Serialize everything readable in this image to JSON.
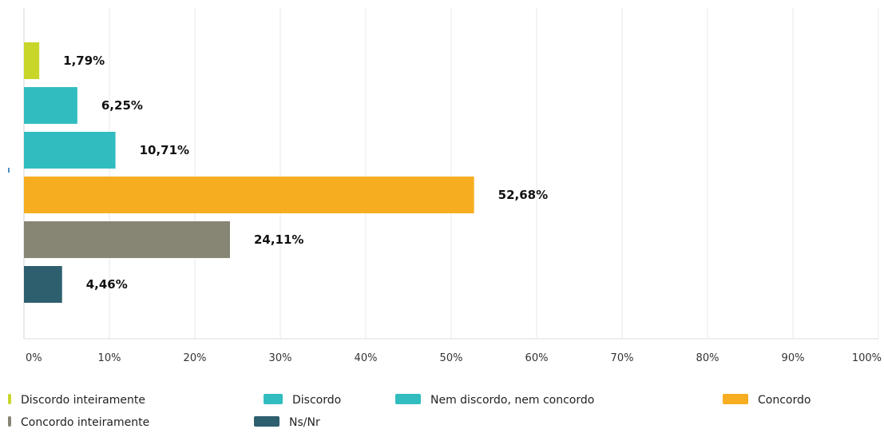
{
  "chart_data": {
    "type": "bar",
    "orientation": "horizontal",
    "title": "",
    "xlabel": "",
    "ylabel": "",
    "xlim": [
      0,
      100
    ],
    "grid": true,
    "legend_position": "bottom",
    "categories": [
      "Discordo inteiramente",
      "Discordo",
      "Nem discordo, nem concordo",
      "Concordo",
      "Concordo inteiramente",
      "Ns/Nr"
    ],
    "values": [
      1.79,
      6.25,
      10.71,
      52.68,
      24.11,
      4.46
    ],
    "value_labels": [
      "1,79%",
      "6,25%",
      "10,71%",
      "52,68%",
      "24,11%",
      "4,46%"
    ],
    "colors": [
      "#c8d62a",
      "#31bdbf",
      "#31bdbf",
      "#f6ad1f",
      "#878573",
      "#2d5f6e"
    ],
    "x_ticks": [
      0,
      10,
      20,
      30,
      40,
      50,
      60,
      70,
      80,
      90,
      100
    ],
    "x_tick_labels": [
      "0%",
      "10%",
      "20%",
      "30%",
      "40%",
      "50%",
      "60%",
      "70%",
      "80%",
      "90%",
      "100%"
    ],
    "legend": [
      "Discordo inteiramente",
      "Discordo",
      "Nem discordo, nem concordo",
      "Concordo",
      "Concordo inteiramente",
      "Ns/Nr"
    ]
  }
}
